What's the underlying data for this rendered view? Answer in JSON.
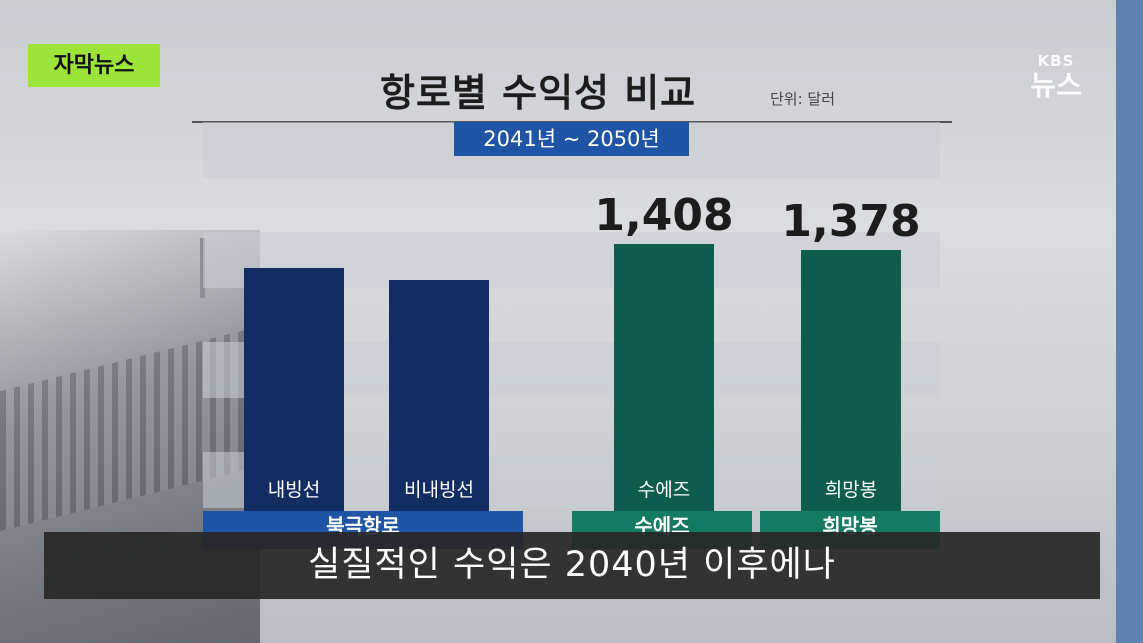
{
  "tag_label": "자막뉴스",
  "logo": {
    "line1": "KBS",
    "line2": "뉴스"
  },
  "chart_data": {
    "type": "bar",
    "title": "항로별 수익성 비교",
    "unit": "단위: 달러",
    "period": "2041년 ~ 2050년",
    "categories": [
      "내빙선",
      "비내빙선",
      "수에즈",
      "희망봉"
    ],
    "values": [
      1280,
      1220,
      1408,
      1378
    ],
    "value_labels": [
      "",
      "",
      "1,408",
      "1,378"
    ],
    "groups": [
      {
        "label": "북극항로",
        "categories": [
          "내빙선",
          "비내빙선"
        ],
        "color": "#1f54a6"
      },
      {
        "label": "수에즈",
        "categories": [
          "수에즈"
        ],
        "color": "#157a62"
      },
      {
        "label": "희망봉",
        "categories": [
          "희망봉"
        ],
        "color": "#157a62"
      }
    ],
    "bar_colors": [
      "#132d63",
      "#132d63",
      "#0d5c4c",
      "#0d5c4c"
    ],
    "ylim": [
      0,
      1500
    ]
  },
  "subtitle": "실질적인 수익은 2040년 이후에나",
  "colors": {
    "tag": "#9ce33a",
    "side_bar": "#5f82ad",
    "period_box": "#1f54a6"
  }
}
